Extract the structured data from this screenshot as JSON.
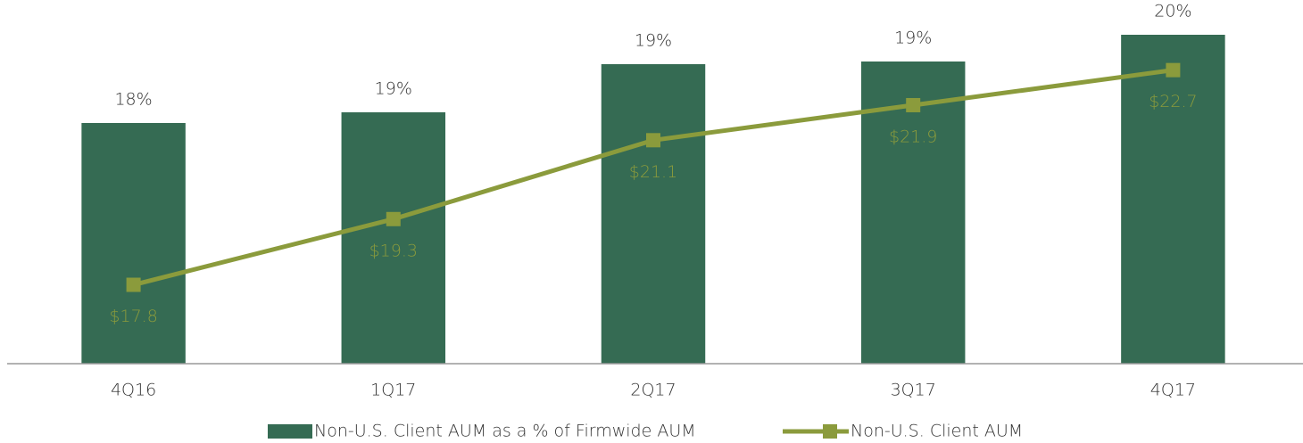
{
  "chart_data": {
    "type": "bar_line",
    "categories": [
      "4Q16",
      "1Q17",
      "2Q17",
      "3Q17",
      "4Q17"
    ],
    "series": [
      {
        "name": "Non-U.S. Client AUM as a % of Firmwide AUM",
        "type": "bar",
        "color": "#356b53",
        "values": [
          18.3,
          18.5,
          19.4,
          19.45,
          19.95
        ],
        "value_labels": [
          "18%",
          "19%",
          "19%",
          "19%",
          "20%"
        ]
      },
      {
        "name": "Non-U.S. Client AUM",
        "type": "line",
        "axis": "y2",
        "color": "#8b9b3c",
        "values": [
          17.8,
          19.3,
          21.1,
          21.9,
          22.7
        ],
        "value_labels": [
          "$17.8",
          "$19.3",
          "$21.1",
          "$21.9",
          "$22.7"
        ]
      }
    ],
    "ylim": [
      13.8,
      20.6
    ],
    "y2lim": [
      16,
      24.3
    ],
    "legend": "bottom"
  }
}
